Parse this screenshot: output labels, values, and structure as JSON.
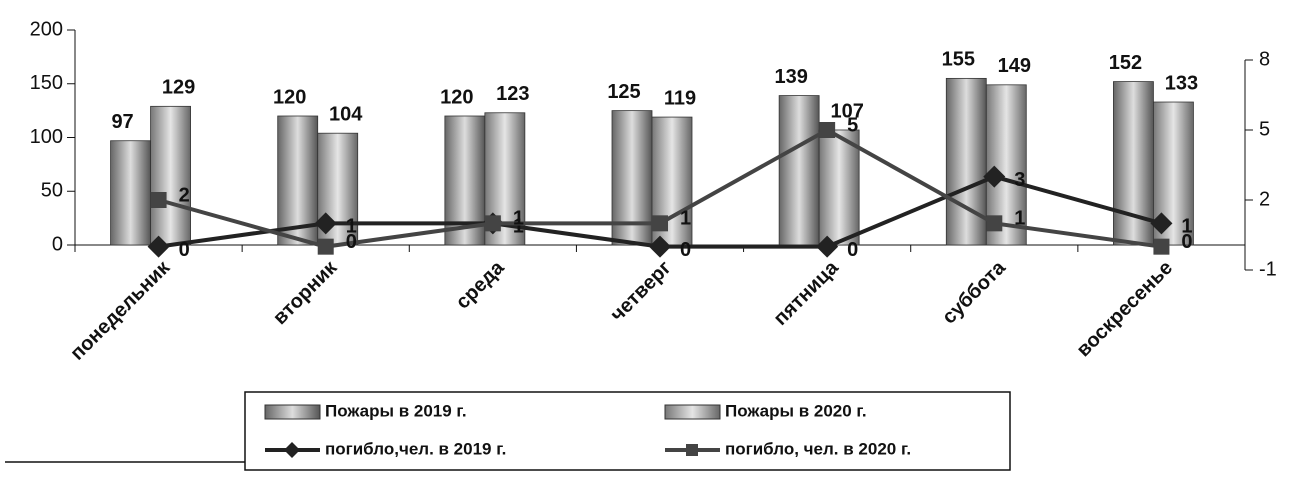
{
  "chart_data": {
    "type": "bar-line",
    "categories": [
      "понедельник",
      "вторник",
      "среда",
      "четверг",
      "пятница",
      "суббота",
      "воскресенье"
    ],
    "series": [
      {
        "name": "Пожары в 2019 г.",
        "type": "bar",
        "color": "#9a9a9a",
        "values": [
          97,
          120,
          120,
          125,
          139,
          155,
          152
        ]
      },
      {
        "name": "Пожары в 2020 г.",
        "type": "bar",
        "color": "#b0b0b0",
        "values": [
          129,
          104,
          123,
          119,
          107,
          149,
          133
        ]
      },
      {
        "name": "погибло,чел. в 2019 г.",
        "type": "line",
        "marker": "diamond",
        "axis": "y2",
        "color": "#222222",
        "values": [
          0,
          1,
          1,
          0,
          0,
          3,
          1
        ]
      },
      {
        "name": "погибло, чел. в 2020 г.",
        "type": "line",
        "marker": "square",
        "axis": "y2",
        "color": "#444444",
        "values": [
          2,
          0,
          1,
          1,
          5,
          1,
          0
        ]
      }
    ],
    "ylim": [
      0,
      200
    ],
    "yticks": [
      0,
      50,
      100,
      150,
      200
    ],
    "y2lim": [
      -1,
      8
    ],
    "y2ticks": [
      -1,
      2,
      5,
      8
    ],
    "grid": false,
    "legend": "bottom"
  }
}
